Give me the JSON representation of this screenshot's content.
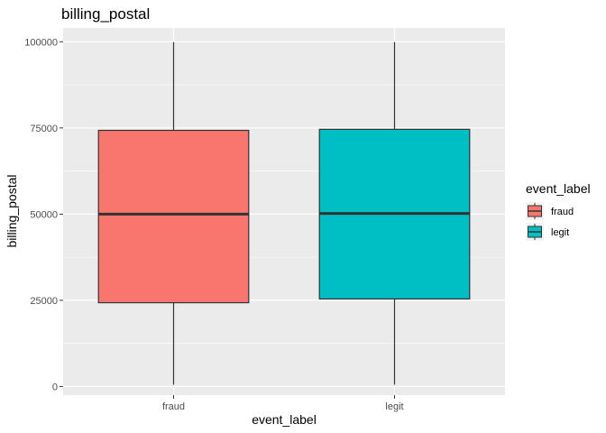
{
  "chart_data": {
    "type": "boxplot",
    "title": "billing_postal",
    "xlabel": "event_label",
    "ylabel": "billing_postal",
    "categories": [
      "fraud",
      "legit"
    ],
    "boxes": [
      {
        "category": "fraud",
        "min": 500,
        "q1": 24300,
        "median": 50000,
        "q3": 74300,
        "max": 99900,
        "color": "#F8766D"
      },
      {
        "category": "legit",
        "min": 500,
        "q1": 25400,
        "median": 50200,
        "q3": 74600,
        "max": 99900,
        "color": "#00BFC4"
      }
    ],
    "ylim": [
      -2500,
      104000
    ],
    "yticks": [
      0,
      25000,
      50000,
      75000,
      100000
    ],
    "ytick_labels": [
      "0",
      "25000",
      "50000",
      "75000",
      "100000"
    ],
    "grid": true,
    "legend": {
      "title": "event_label",
      "position": "right",
      "entries": [
        {
          "label": "fraud",
          "color": "#F8766D"
        },
        {
          "label": "legit",
          "color": "#00BFC4"
        }
      ]
    },
    "panel_background": "#EBEBEB"
  }
}
